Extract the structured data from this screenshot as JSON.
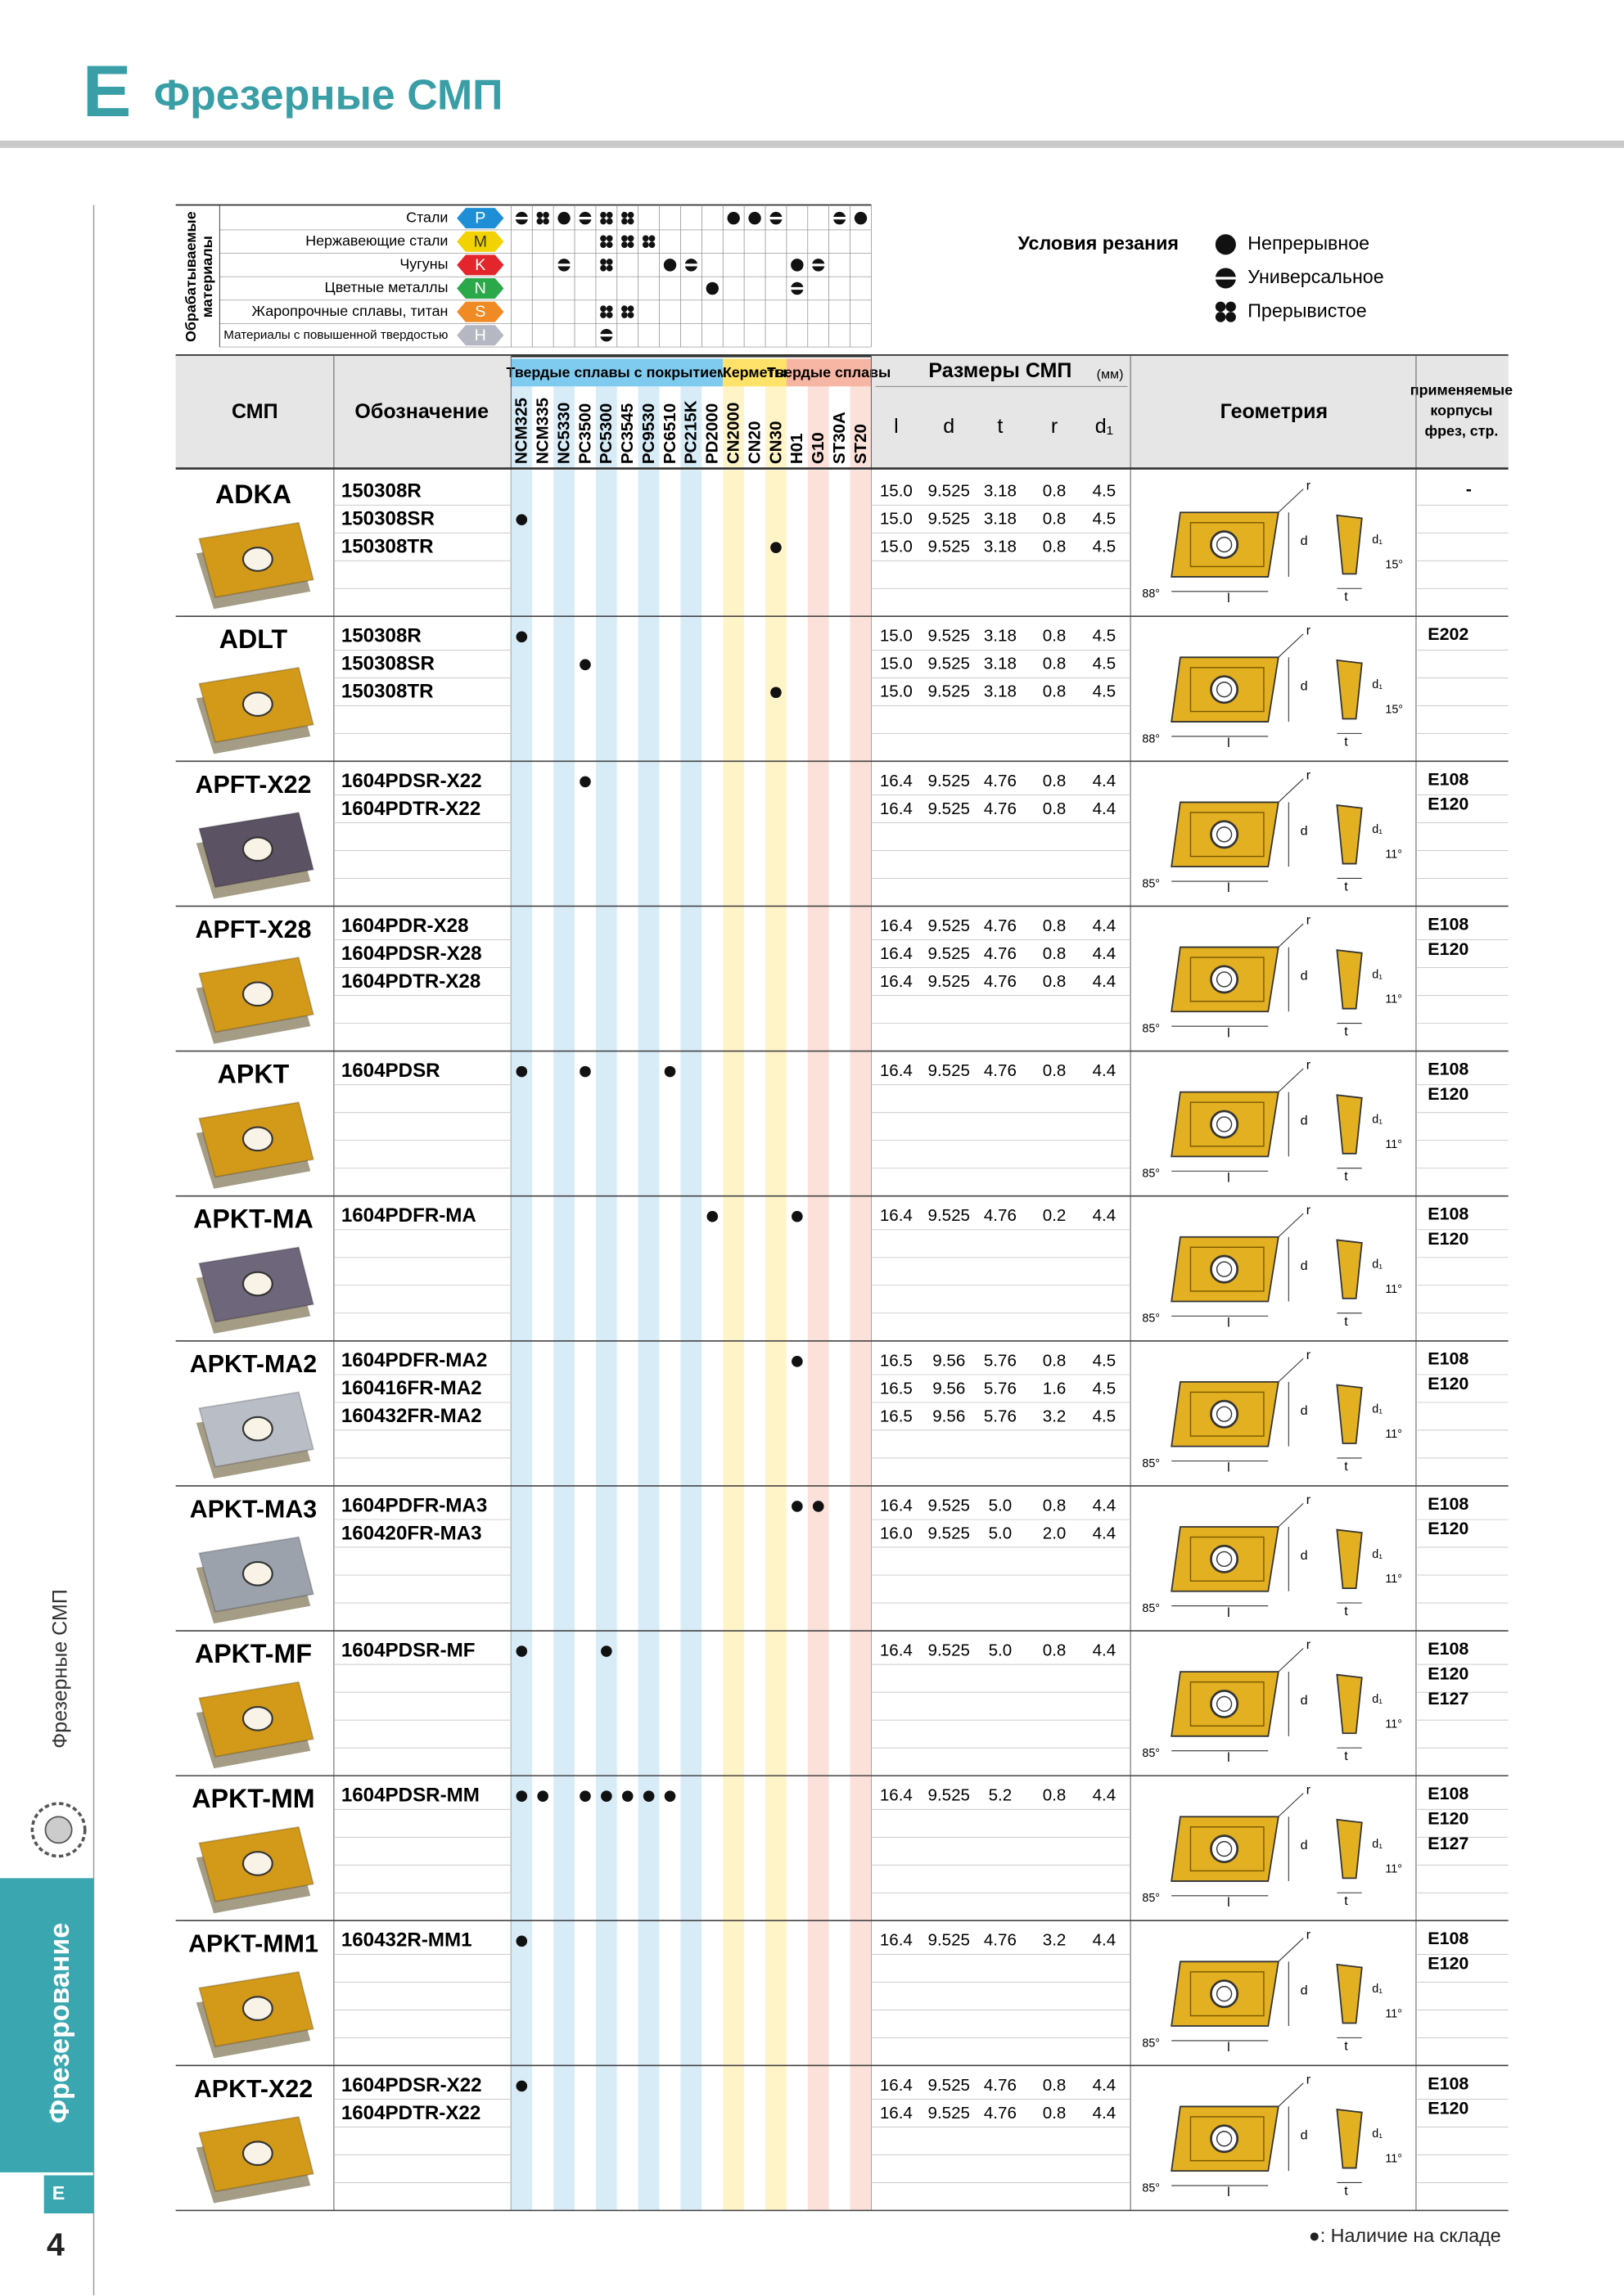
{
  "header": {
    "letter": "E",
    "title": "Фрезерные СМП"
  },
  "side": {
    "section": "Фрезерные СМП",
    "chapter": "Фрезерование",
    "letter": "E"
  },
  "page_number": "4",
  "materials": {
    "label": [
      "Обрабатываемые",
      "материалы"
    ],
    "rows": [
      {
        "name": "Стали",
        "iso": "P",
        "color": "#1e8fd6",
        "cells": [
          "u",
          "i",
          "c",
          "u",
          "i",
          "i",
          null,
          null,
          null,
          null,
          "c",
          "c",
          "u",
          null,
          null,
          "u",
          "c"
        ]
      },
      {
        "name": "Нержавеющие стали",
        "iso": "M",
        "color": "#f2d200",
        "cells": [
          null,
          null,
          null,
          null,
          "i",
          "i",
          "i",
          null,
          null,
          null,
          null,
          null,
          null,
          null,
          null,
          null,
          null
        ]
      },
      {
        "name": "Чугуны",
        "iso": "K",
        "color": "#e3262b",
        "cells": [
          null,
          null,
          "u",
          null,
          "i",
          null,
          null,
          "c",
          "u",
          null,
          null,
          null,
          null,
          "c",
          "u",
          null,
          null
        ]
      },
      {
        "name": "Цветные металлы",
        "iso": "N",
        "color": "#2aa84a",
        "cells": [
          null,
          null,
          null,
          null,
          null,
          null,
          null,
          null,
          null,
          "c",
          null,
          null,
          null,
          "u",
          null,
          null,
          null
        ]
      },
      {
        "name": "Жаропрочные сплавы, титан",
        "iso": "S",
        "color": "#f08a24",
        "cells": [
          null,
          null,
          null,
          null,
          "i",
          "i",
          null,
          null,
          null,
          null,
          null,
          null,
          null,
          null,
          null,
          null,
          null
        ]
      },
      {
        "name": "Материалы с повышенной твердостью",
        "iso": "H",
        "color": "#b5b8c2",
        "cells": [
          null,
          null,
          null,
          null,
          "u",
          null,
          null,
          null,
          null,
          null,
          null,
          null,
          null,
          null,
          null,
          null,
          null
        ]
      }
    ]
  },
  "legend": {
    "title": "Условия резания",
    "items": [
      {
        "symbol": "c",
        "label": "Непрерывное"
      },
      {
        "symbol": "u",
        "label": "Универсальное"
      },
      {
        "symbol": "i",
        "label": "Прерывистое"
      }
    ]
  },
  "table": {
    "columns": {
      "insert": "СМП",
      "designation": "Обозначение",
      "groups": [
        {
          "label": "Твердые сплавы с покрытием",
          "color": "#7fcbef",
          "stripe": "#d8ecf8",
          "grades": [
            "NCM325",
            "NCM335",
            "NC5330",
            "PC3500",
            "PC5300",
            "PC3545",
            "PC9530",
            "PC6510",
            "PC215K",
            "PD2000"
          ]
        },
        {
          "label": "Керметы",
          "color": "#ffe26a",
          "stripe": "#fff4c8",
          "grades": [
            "CN2000",
            "CN20",
            "CN30"
          ]
        },
        {
          "label": "Твердые сплавы",
          "color": "#f7b6a4",
          "stripe": "#fbe1d9",
          "grades": [
            "H01",
            "G10",
            "ST30A",
            "ST20"
          ]
        }
      ],
      "size": "Размеры СМП",
      "unit": "(мм)",
      "dims": [
        "l",
        "d",
        "t",
        "r",
        "d₁"
      ],
      "geometry": "Геометрия",
      "pages": [
        "применяемые",
        "корпусы",
        "фрез, стр."
      ]
    },
    "rows": [
      {
        "insert": "ADKA",
        "angles": [
          "88°",
          "15°"
        ],
        "pages": [
          "-"
        ],
        "items": [
          {
            "code": "150308R",
            "grades": [],
            "dims": [
              "15.0",
              "9.525",
              "3.18",
              "0.8",
              "4.5"
            ]
          },
          {
            "code": "150308SR",
            "grades": [
              0
            ],
            "dims": [
              "15.0",
              "9.525",
              "3.18",
              "0.8",
              "4.5"
            ]
          },
          {
            "code": "150308TR",
            "grades": [
              12
            ],
            "dims": [
              "15.0",
              "9.525",
              "3.18",
              "0.8",
              "4.5"
            ]
          }
        ]
      },
      {
        "insert": "ADLT",
        "angles": [
          "88°",
          "15°"
        ],
        "pages": [
          "E202"
        ],
        "items": [
          {
            "code": "150308R",
            "grades": [
              0
            ],
            "dims": [
              "15.0",
              "9.525",
              "3.18",
              "0.8",
              "4.5"
            ]
          },
          {
            "code": "150308SR",
            "grades": [
              3
            ],
            "dims": [
              "15.0",
              "9.525",
              "3.18",
              "0.8",
              "4.5"
            ]
          },
          {
            "code": "150308TR",
            "grades": [
              12
            ],
            "dims": [
              "15.0",
              "9.525",
              "3.18",
              "0.8",
              "4.5"
            ]
          }
        ]
      },
      {
        "insert": "APFT-X22",
        "angles": [
          "85°",
          "11°"
        ],
        "pages": [
          "E108",
          "E120"
        ],
        "items": [
          {
            "code": "1604PDSR-X22",
            "grades": [
              3
            ],
            "dims": [
              "16.4",
              "9.525",
              "4.76",
              "0.8",
              "4.4"
            ]
          },
          {
            "code": "1604PDTR-X22",
            "grades": [],
            "dims": [
              "16.4",
              "9.525",
              "4.76",
              "0.8",
              "4.4"
            ]
          }
        ]
      },
      {
        "insert": "APFT-X28",
        "angles": [
          "85°",
          "11°"
        ],
        "pages": [
          "E108",
          "E120"
        ],
        "items": [
          {
            "code": "1604PDR-X28",
            "grades": [],
            "dims": [
              "16.4",
              "9.525",
              "4.76",
              "0.8",
              "4.4"
            ]
          },
          {
            "code": "1604PDSR-X28",
            "grades": [],
            "dims": [
              "16.4",
              "9.525",
              "4.76",
              "0.8",
              "4.4"
            ]
          },
          {
            "code": "1604PDTR-X28",
            "grades": [],
            "dims": [
              "16.4",
              "9.525",
              "4.76",
              "0.8",
              "4.4"
            ]
          }
        ]
      },
      {
        "insert": "APKT",
        "angles": [
          "85°",
          "11°"
        ],
        "pages": [
          "E108",
          "E120"
        ],
        "items": [
          {
            "code": "1604PDSR",
            "grades": [
              0,
              3,
              7
            ],
            "dims": [
              "16.4",
              "9.525",
              "4.76",
              "0.8",
              "4.4"
            ]
          }
        ]
      },
      {
        "insert": "APKT-MA",
        "angles": [
          "85°",
          "11°"
        ],
        "pages": [
          "E108",
          "E120"
        ],
        "items": [
          {
            "code": "1604PDFR-MA",
            "grades": [
              9,
              13
            ],
            "dims": [
              "16.4",
              "9.525",
              "4.76",
              "0.2",
              "4.4"
            ]
          }
        ]
      },
      {
        "insert": "APKT-MA2",
        "angles": [
          "85°",
          "11°"
        ],
        "pages": [
          "E108",
          "E120"
        ],
        "items": [
          {
            "code": "1604PDFR-MA2",
            "grades": [
              13
            ],
            "dims": [
              "16.5",
              "9.56",
              "5.76",
              "0.8",
              "4.5"
            ]
          },
          {
            "code": "160416FR-MA2",
            "grades": [],
            "dims": [
              "16.5",
              "9.56",
              "5.76",
              "1.6",
              "4.5"
            ]
          },
          {
            "code": "160432FR-MA2",
            "grades": [],
            "dims": [
              "16.5",
              "9.56",
              "5.76",
              "3.2",
              "4.5"
            ]
          }
        ]
      },
      {
        "insert": "APKT-MA3",
        "angles": [
          "85°",
          "11°"
        ],
        "pages": [
          "E108",
          "E120"
        ],
        "items": [
          {
            "code": "1604PDFR-MA3",
            "grades": [
              13,
              14
            ],
            "dims": [
              "16.4",
              "9.525",
              "5.0",
              "0.8",
              "4.4"
            ]
          },
          {
            "code": "160420FR-MA3",
            "grades": [],
            "dims": [
              "16.0",
              "9.525",
              "5.0",
              "2.0",
              "4.4"
            ]
          }
        ]
      },
      {
        "insert": "APKT-MF",
        "angles": [
          "85°",
          "11°"
        ],
        "pages": [
          "E108",
          "E120",
          "E127"
        ],
        "items": [
          {
            "code": "1604PDSR-MF",
            "grades": [
              0,
              4
            ],
            "dims": [
              "16.4",
              "9.525",
              "5.0",
              "0.8",
              "4.4"
            ]
          }
        ]
      },
      {
        "insert": "APKT-MM",
        "angles": [
          "85°",
          "11°"
        ],
        "pages": [
          "E108",
          "E120",
          "E127"
        ],
        "items": [
          {
            "code": "1604PDSR-MM",
            "grades": [
              0,
              1,
              3,
              4,
              5,
              6,
              7
            ],
            "dims": [
              "16.4",
              "9.525",
              "5.2",
              "0.8",
              "4.4"
            ]
          }
        ]
      },
      {
        "insert": "APKT-MM1",
        "angles": [
          "85°",
          "11°"
        ],
        "pages": [
          "E108",
          "E120"
        ],
        "items": [
          {
            "code": "160432R-MM1",
            "grades": [
              0
            ],
            "dims": [
              "16.4",
              "9.525",
              "4.76",
              "3.2",
              "4.4"
            ]
          }
        ]
      },
      {
        "insert": "APKT-X22",
        "angles": [
          "85°",
          "11°"
        ],
        "pages": [
          "E108",
          "E120"
        ],
        "items": [
          {
            "code": "1604PDSR-X22",
            "grades": [
              0
            ],
            "dims": [
              "16.4",
              "9.525",
              "4.76",
              "0.8",
              "4.4"
            ]
          },
          {
            "code": "1604PDTR-X22",
            "grades": [],
            "dims": [
              "16.4",
              "9.525",
              "4.76",
              "0.8",
              "4.4"
            ]
          }
        ]
      }
    ]
  },
  "geometry_labels": {
    "r": "r",
    "d": "d",
    "d1": "d₁",
    "l": "l",
    "t": "t"
  },
  "note": "●: Наличие на складе"
}
